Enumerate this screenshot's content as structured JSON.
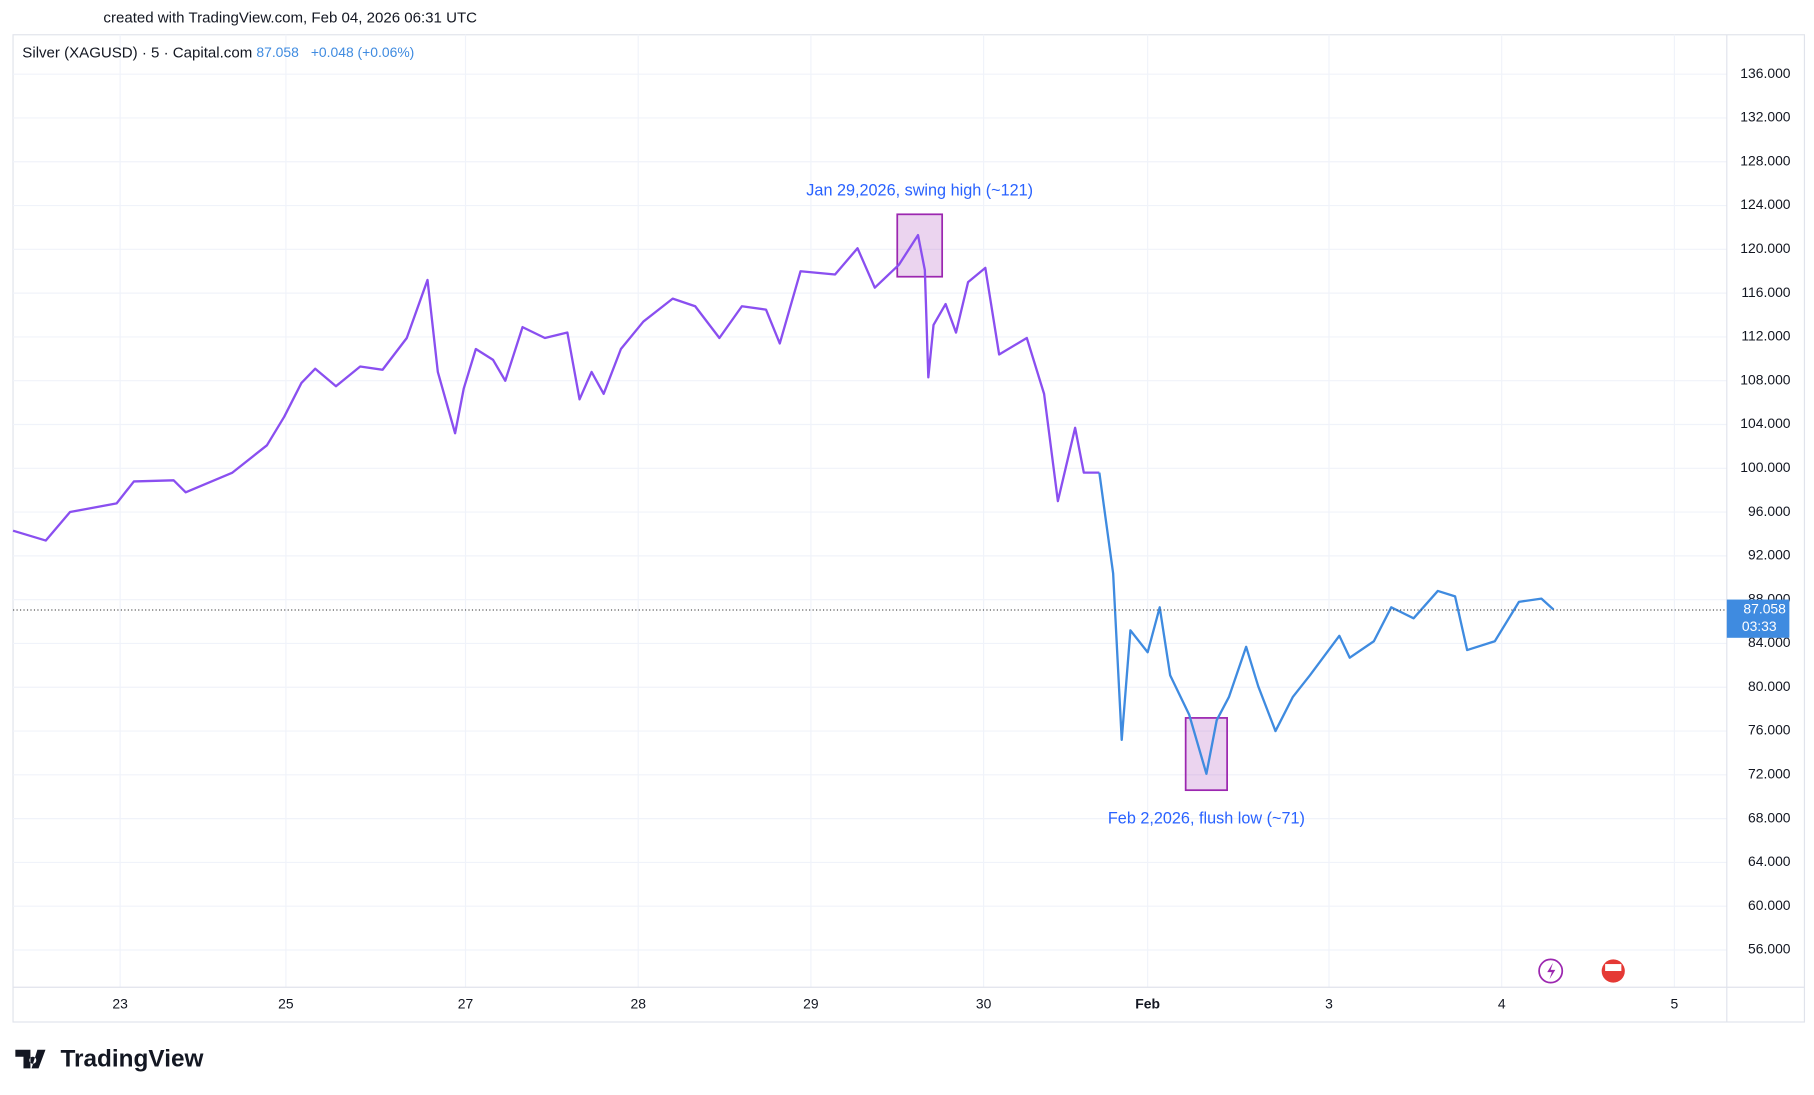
{
  "header": {
    "credit": "created with TradingView.com, Feb 04, 2026 06:31 UTC",
    "symbol": "Silver (XAGUSD) · 5 · Capital.com",
    "price": 87.058,
    "change": "+0.048 (+0.06%)"
  },
  "footer": {
    "brand": "TradingView"
  },
  "chart_data": {
    "type": "line",
    "series": [
      {
        "color": "#8a4ff0",
        "x": [
          0,
          0.19,
          0.33,
          0.6,
          0.7,
          0.93,
          1.0,
          1.27,
          1.47,
          1.57,
          1.67,
          1.75,
          1.87,
          2.01,
          2.14,
          2.28,
          2.4,
          2.46,
          2.56,
          2.61,
          2.68,
          2.78,
          2.85,
          2.95,
          3.08,
          3.21,
          3.28,
          3.35,
          3.42,
          3.52,
          3.65,
          3.82,
          3.95,
          4.09,
          4.22,
          4.36,
          4.44,
          4.56,
          4.76,
          4.89,
          4.99,
          5.13,
          5.24,
          5.28,
          5.3,
          5.33,
          5.4,
          5.46,
          5.53,
          5.63,
          5.71,
          5.87,
          5.97,
          6.05,
          6.15,
          6.2,
          6.29
        ],
        "values": [
          94.3,
          93.4,
          96,
          96.8,
          98.8,
          98.9,
          97.8,
          99.6,
          102.1,
          104.7,
          107.8,
          109.1,
          107.5,
          109.3,
          109,
          111.9,
          117.2,
          108.8,
          103.2,
          107.3,
          110.9,
          109.9,
          108,
          112.9,
          111.9,
          112.4,
          106.3,
          108.8,
          106.8,
          110.9,
          113.4,
          115.5,
          114.8,
          111.9,
          114.8,
          114.5,
          111.4,
          118,
          117.7,
          120.1,
          116.5,
          118.6,
          121.3,
          118.1,
          108.3,
          113.1,
          115,
          112.4,
          117,
          118.3,
          110.4,
          111.9,
          106.8,
          97,
          103.7,
          99.6,
          99.6
        ]
      },
      {
        "color": "#3f8be0",
        "x": [
          6.29,
          6.37,
          6.42,
          6.47,
          6.57,
          6.64,
          6.7,
          6.81,
          6.91,
          6.97,
          7.04,
          7.14,
          7.21,
          7.31,
          7.41,
          7.51,
          7.68,
          7.74,
          7.88,
          7.98,
          8.11,
          8.25,
          8.35,
          8.42,
          8.58,
          8.72,
          8.85,
          8.92
        ],
        "values": [
          99.6,
          90.4,
          75.2,
          85.2,
          83.2,
          87.3,
          81.1,
          77.5,
          72.1,
          77,
          79.1,
          83.7,
          80.1,
          76,
          79.1,
          81.1,
          84.7,
          82.7,
          84.2,
          87.3,
          86.3,
          88.8,
          88.3,
          83.4,
          84.2,
          87.8,
          88.1,
          87.1
        ]
      }
    ],
    "xlim": [
      0,
      9.91
    ],
    "xticks": [
      {
        "value": 0.62,
        "label": "23"
      },
      {
        "value": 1.58,
        "label": "25"
      },
      {
        "value": 2.62,
        "label": "27"
      },
      {
        "value": 3.62,
        "label": "28"
      },
      {
        "value": 4.62,
        "label": "29"
      },
      {
        "value": 5.62,
        "label": "30"
      },
      {
        "value": 6.57,
        "label": "Feb"
      },
      {
        "value": 7.62,
        "label": "3"
      },
      {
        "value": 8.62,
        "label": "4"
      },
      {
        "value": 9.62,
        "label": "5"
      }
    ],
    "ylim": [
      52.6,
      139.6
    ],
    "yticks": [
      {
        "value": 56,
        "label": "56.000"
      },
      {
        "value": 60,
        "label": "60.000"
      },
      {
        "value": 64,
        "label": "64.000"
      },
      {
        "value": 68,
        "label": "68.000"
      },
      {
        "value": 72,
        "label": "72.000"
      },
      {
        "value": 76,
        "label": "76.000"
      },
      {
        "value": 80,
        "label": "80.000"
      },
      {
        "value": 84,
        "label": "84.000"
      },
      {
        "value": 88,
        "label": "88.000"
      },
      {
        "value": 92,
        "label": "92.000"
      },
      {
        "value": 96,
        "label": "96.000"
      },
      {
        "value": 100,
        "label": "100.000"
      },
      {
        "value": 104,
        "label": "104.000"
      },
      {
        "value": 108,
        "label": "108.000"
      },
      {
        "value": 112,
        "label": "112.000"
      },
      {
        "value": 116,
        "label": "116.000"
      },
      {
        "value": 120,
        "label": "120.000"
      },
      {
        "value": 124,
        "label": "124.000"
      },
      {
        "value": 128,
        "label": "128.000"
      },
      {
        "value": 132,
        "label": "132.000"
      },
      {
        "value": 136,
        "label": "136.000"
      }
    ],
    "grid": true,
    "last": {
      "value": 87.058,
      "countdown": "03:33",
      "color": "#3f8be0"
    },
    "annotations": [
      {
        "text": "Jan 29,2026, swing high (~121)",
        "x": [
          5.12,
          5.38
        ],
        "y": [
          117.5,
          123.2
        ]
      },
      {
        "text": "Feb 2,2026, flush low (~71)",
        "x": [
          6.79,
          7.03
        ],
        "y": [
          70.6,
          77.2
        ]
      }
    ]
  }
}
